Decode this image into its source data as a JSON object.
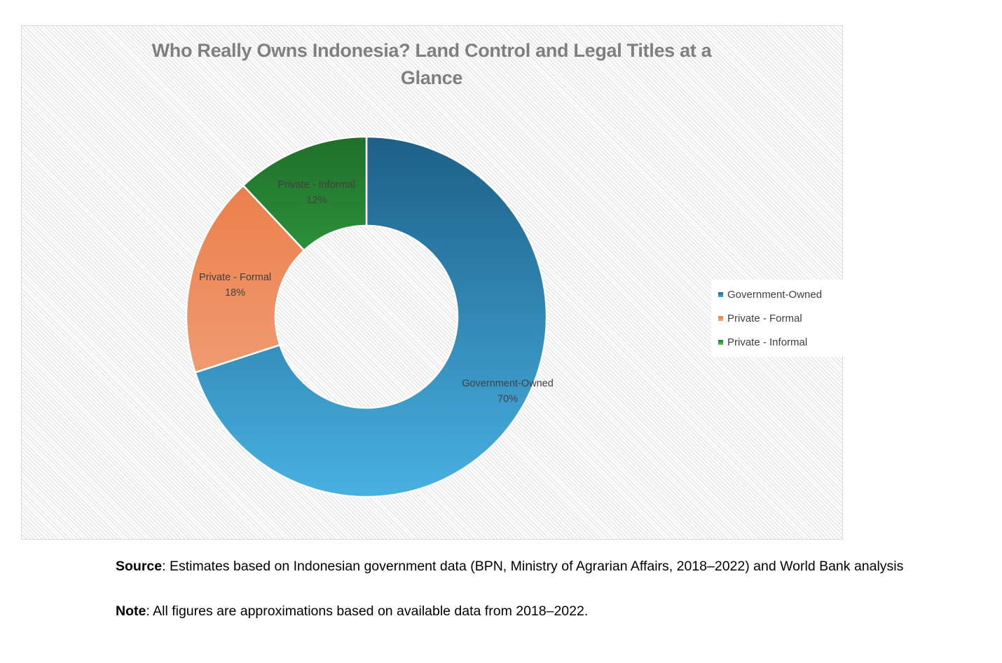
{
  "chart_data": {
    "type": "donut",
    "title": "Who Really Owns Indonesia? Land Control and Legal Titles at a Glance",
    "categories": [
      "Government-Owned",
      "Private - Formal",
      "Private - Informal"
    ],
    "values": [
      70,
      18,
      12
    ],
    "value_labels": [
      "70%",
      "18%",
      "12%"
    ],
    "colors": [
      {
        "light": "#48b1e2",
        "dark": "#1c6087"
      },
      {
        "light": "#f2ad8c",
        "dark": "#eb7840"
      },
      {
        "light": "#48d45a",
        "dark": "#1f702a"
      }
    ],
    "legend_position": "right",
    "legend": [
      "Government-Owned",
      "Private - Formal",
      "Private - Informal"
    ]
  },
  "footer": {
    "source_label": "Source",
    "source_text": ": Estimates based on Indonesian government data (BPN, Ministry of Agrarian Affairs, 2018–2022) and World Bank  analysis",
    "note_label": "Note",
    "note_text": ": All figures are approximations based on available data from 2018–2022."
  }
}
